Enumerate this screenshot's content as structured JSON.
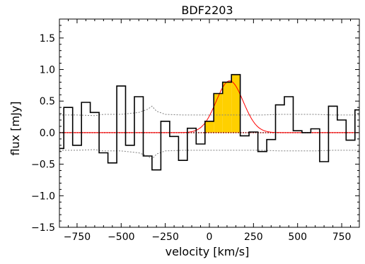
{
  "chart_data": {
    "type": "line",
    "title": "BDF2203",
    "xlabel": "velocity [km/s]",
    "ylabel": "flux [mJy]",
    "xlim": [
      -850,
      850
    ],
    "ylim": [
      -1.5,
      1.8
    ],
    "xticks": [
      -750,
      -500,
      -250,
      0,
      250,
      500,
      750
    ],
    "xtick_labels": [
      "−750",
      "−500",
      "−250",
      "0",
      "250",
      "500",
      "750"
    ],
    "yticks": [
      -1.5,
      -1.0,
      -0.5,
      0.0,
      0.5,
      1.0,
      1.5
    ],
    "ytick_labels": [
      "−1.5",
      "−1.0",
      "−0.5",
      "0.0",
      "0.5",
      "1.0",
      "1.5"
    ],
    "grid": false,
    "legend": "none",
    "colors": {
      "spectrum": "#000000",
      "fit": "#ff0000",
      "zero": "#8b0000",
      "noise": "#808080",
      "fill": "#ffd000",
      "fill_edge": "#000000"
    },
    "spectrum": {
      "bin_width": 50,
      "centers": [
        -850,
        -800,
        -750,
        -700,
        -650,
        -600,
        -550,
        -500,
        -450,
        -400,
        -350,
        -300,
        -250,
        -200,
        -150,
        -100,
        -50,
        0,
        50,
        100,
        150,
        200,
        250,
        300,
        350,
        400,
        450,
        500,
        550,
        600,
        650,
        700,
        750,
        800,
        850
      ],
      "flux": [
        -0.25,
        0.4,
        -0.2,
        0.48,
        0.32,
        -0.32,
        -0.48,
        0.74,
        -0.2,
        0.57,
        -0.37,
        -0.59,
        0.18,
        -0.06,
        -0.44,
        0.07,
        -0.18,
        0.18,
        0.62,
        0.8,
        0.92,
        -0.05,
        0.01,
        -0.3,
        -0.11,
        0.44,
        0.57,
        0.03,
        0.0,
        0.06,
        -0.46,
        0.42,
        0.2,
        -0.12,
        0.36
      ]
    },
    "shaded_range": [
      -25,
      175
    ],
    "gaussian_fit": {
      "amplitude": 0.82,
      "center": 115,
      "fwhm": 180
    },
    "noise_upper": {
      "x": [
        -850,
        -750,
        -650,
        -600,
        -500,
        -400,
        -350,
        -325,
        -300,
        -250,
        -150,
        -50,
        0,
        100,
        200,
        300,
        400,
        500,
        600,
        700,
        850
      ],
      "y": [
        0.28,
        0.28,
        0.27,
        0.29,
        0.29,
        0.32,
        0.37,
        0.42,
        0.34,
        0.29,
        0.28,
        0.28,
        0.28,
        0.28,
        0.28,
        0.28,
        0.29,
        0.29,
        0.29,
        0.28,
        0.28
      ]
    },
    "noise_lower": {
      "x": [
        -850,
        -750,
        -650,
        -600,
        -500,
        -400,
        -350,
        -325,
        -300,
        -250,
        -150,
        -50,
        0,
        100,
        200,
        300,
        400,
        500,
        600,
        700,
        850
      ],
      "y": [
        -0.28,
        -0.28,
        -0.27,
        -0.29,
        -0.29,
        -0.32,
        -0.37,
        -0.42,
        -0.34,
        -0.29,
        -0.28,
        -0.28,
        -0.28,
        -0.28,
        -0.28,
        -0.28,
        -0.29,
        -0.29,
        -0.29,
        -0.28,
        -0.28
      ]
    }
  }
}
